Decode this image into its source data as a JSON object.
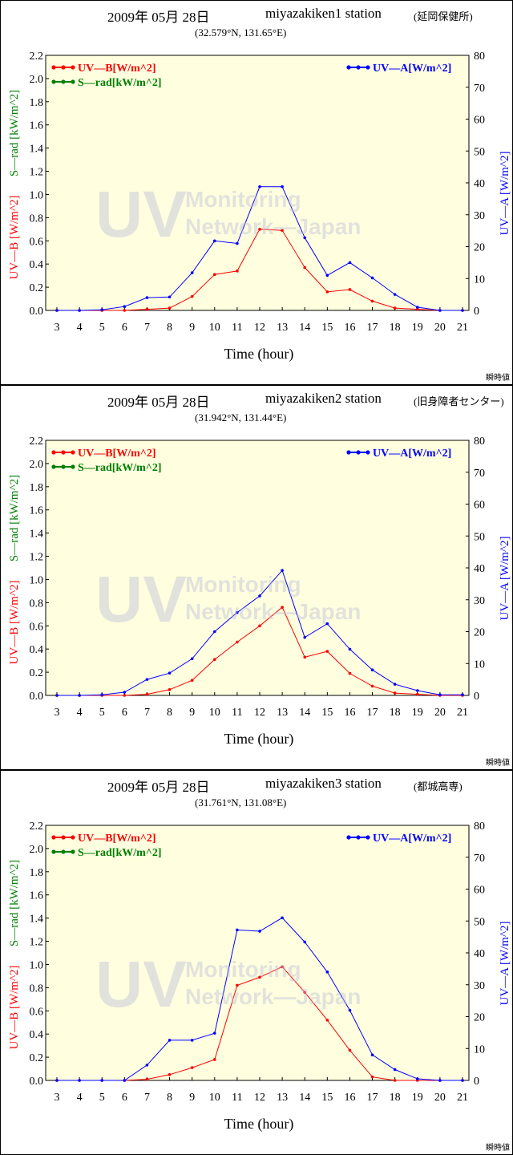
{
  "footer_label": "瞬時値",
  "watermark": {
    "big": "UV",
    "line1": "Monitoring",
    "line2": "Network—Japan"
  },
  "colors": {
    "uvb": "#ff0000",
    "srad": "#008000",
    "uva": "#0000ff",
    "plot_bg": "#ffffe0"
  },
  "chart_data": [
    {
      "type": "line",
      "date": "2009年 05月 28日",
      "station": "miyazakiken1 station",
      "location": "(延岡保健所)",
      "coords": "(32.579°N, 131.65°E)",
      "xlabel": "Time (hour)",
      "ylabel_left": [
        "UV—B [W/m^2]",
        "S—rad [kW/m^2]"
      ],
      "ylabel_right": "UV—A [W/m^2]",
      "x": [
        3,
        4,
        5,
        6,
        7,
        8,
        9,
        10,
        11,
        12,
        13,
        14,
        15,
        16,
        17,
        18,
        19,
        20,
        21
      ],
      "xlim": [
        3,
        21
      ],
      "ylim_left": [
        0,
        2.2
      ],
      "ylim_right": [
        0,
        80
      ],
      "legend": [
        "UV—B[W/m^2]",
        "S—rad[kW/m^2]",
        "UV—A[W/m^2]"
      ],
      "series": [
        {
          "name": "UV—B[W/m^2]",
          "axis": "left",
          "values": [
            0,
            0,
            0,
            0,
            0.01,
            0.02,
            0.12,
            0.31,
            0.34,
            0.7,
            0.69,
            0.37,
            0.16,
            0.18,
            0.08,
            0.02,
            0.01,
            0,
            0
          ]
        },
        {
          "name": "UV—A[W/m^2]",
          "axis": "right",
          "values": [
            0,
            0,
            0.2,
            1.2,
            4,
            4.2,
            11.8,
            21.8,
            21,
            38.8,
            38.8,
            22.8,
            11,
            15,
            10.2,
            5,
            1,
            0,
            0
          ]
        }
      ]
    },
    {
      "type": "line",
      "date": "2009年 05月 28日",
      "station": "miyazakiken2 station",
      "location": "(旧身障者センター)",
      "coords": "(31.942°N, 131.44°E)",
      "xlabel": "Time (hour)",
      "ylabel_left": [
        "UV—B [W/m^2]",
        "S—rad [kW/m^2]"
      ],
      "ylabel_right": "UV—A [W/m^2]",
      "x": [
        3,
        4,
        5,
        6,
        7,
        8,
        9,
        10,
        11,
        12,
        13,
        14,
        15,
        16,
        17,
        18,
        19,
        20,
        21
      ],
      "xlim": [
        3,
        21
      ],
      "ylim_left": [
        0,
        2.2
      ],
      "ylim_right": [
        0,
        80
      ],
      "legend": [
        "UV—B[W/m^2]",
        "S—rad[kW/m^2]",
        "UV—A[W/m^2]"
      ],
      "series": [
        {
          "name": "UV—B[W/m^2]",
          "axis": "left",
          "values": [
            0,
            0,
            0,
            0,
            0.01,
            0.05,
            0.13,
            0.31,
            0.46,
            0.6,
            0.76,
            0.33,
            0.38,
            0.19,
            0.08,
            0.02,
            0.01,
            0,
            0
          ]
        },
        {
          "name": "UV—A[W/m^2]",
          "axis": "right",
          "values": [
            0,
            0,
            0.2,
            1,
            5,
            7,
            11.5,
            20,
            26,
            31.2,
            39.2,
            18.2,
            22.5,
            14.5,
            8,
            3.5,
            1.5,
            0.2,
            0.2
          ]
        }
      ]
    },
    {
      "type": "line",
      "date": "2009年 05月 28日",
      "station": "miyazakiken3 station",
      "location": "(都城高専)",
      "coords": "(31.761°N, 131.08°E)",
      "xlabel": "Time (hour)",
      "ylabel_left": [
        "UV—B [W/m^2]",
        "S—rad [kW/m^2]"
      ],
      "ylabel_right": "UV—A [W/m^2]",
      "x": [
        3,
        4,
        5,
        6,
        7,
        8,
        9,
        10,
        11,
        12,
        13,
        14,
        15,
        16,
        17,
        18,
        19,
        20,
        21
      ],
      "xlim": [
        3,
        21
      ],
      "ylim_left": [
        0,
        2.2
      ],
      "ylim_right": [
        0,
        80
      ],
      "legend": [
        "UV—B[W/m^2]",
        "S—rad[kW/m^2]",
        "UV—A[W/m^2]"
      ],
      "series": [
        {
          "name": "UV—B[W/m^2]",
          "axis": "left",
          "values": [
            0,
            0,
            0,
            0,
            0.01,
            0.05,
            0.11,
            0.18,
            0.82,
            0.89,
            0.98,
            0.76,
            0.52,
            0.26,
            0.03,
            0,
            0,
            0,
            0
          ]
        },
        {
          "name": "UV—A[W/m^2]",
          "axis": "right",
          "values": [
            0,
            0,
            0,
            0,
            4.8,
            12.6,
            12.6,
            14.8,
            47.2,
            46.8,
            51,
            43.4,
            34,
            22,
            8,
            3.4,
            0.5,
            0,
            0
          ]
        }
      ]
    }
  ]
}
